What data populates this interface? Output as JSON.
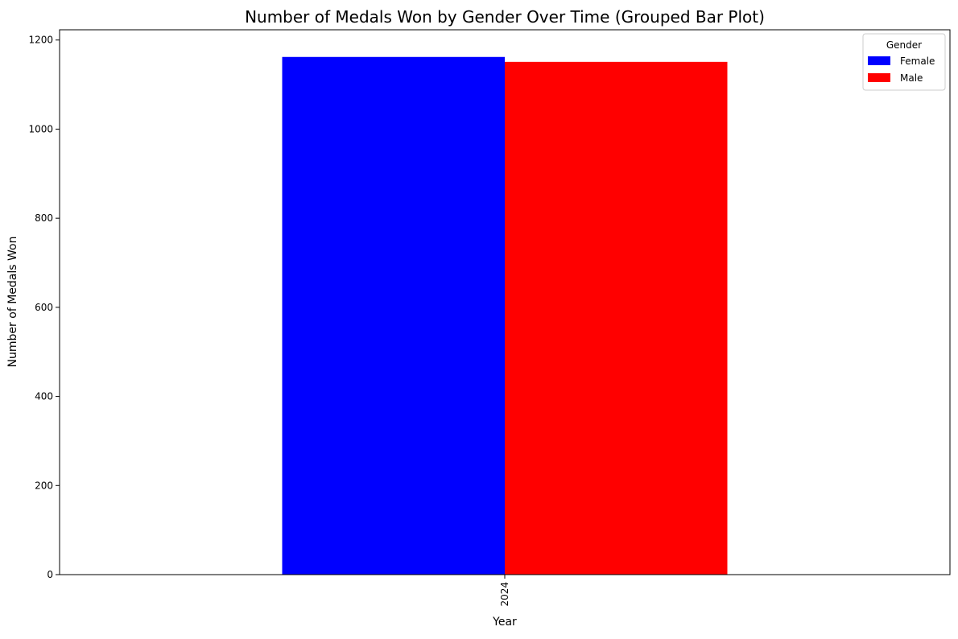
{
  "chart_data": {
    "type": "bar",
    "title": "Number of Medals Won by Gender Over Time (Grouped Bar Plot)",
    "xlabel": "Year",
    "ylabel": "Number of Medals Won",
    "categories": [
      "2024"
    ],
    "series": [
      {
        "name": "Female",
        "color": "#0000ff",
        "values": [
          1162
        ]
      },
      {
        "name": "Male",
        "color": "#ff0000",
        "values": [
          1151
        ]
      }
    ],
    "ylim": [
      0,
      1223
    ],
    "yticks": [
      0,
      200,
      400,
      600,
      800,
      1000,
      1200
    ],
    "xtick_rotation": "vertical",
    "grid": false,
    "legend": {
      "title": "Gender",
      "placement": "top-right"
    }
  }
}
